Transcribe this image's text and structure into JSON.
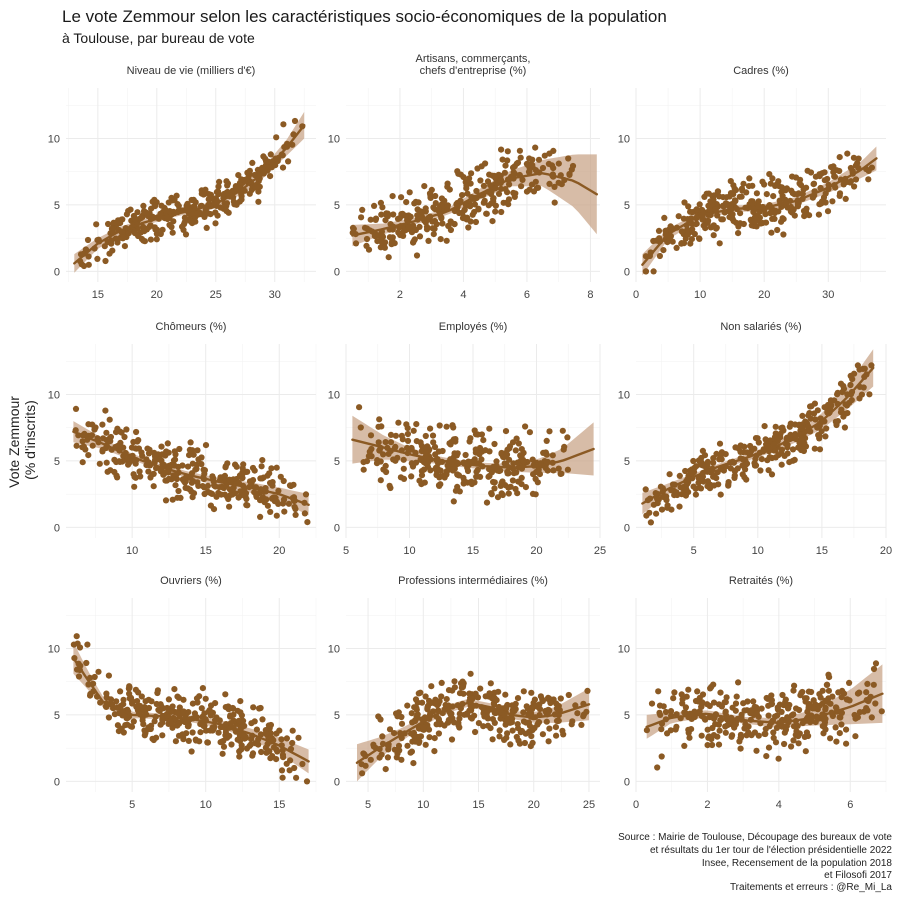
{
  "title": "Le vote Zemmour selon les caractéristiques socio-économiques de la population",
  "subtitle": "à Toulouse, par bureau de vote",
  "ylabel_lines": [
    "Vote Zemmour",
    "(% d'inscrits)"
  ],
  "caption_lines": [
    "Source : Mairie de Toulouse, Découpage des bureaux de vote",
    "et résultats du 1er tour de l'élection présidentielle 2022",
    "Insee, Recensement de la population 2018",
    "et Filosofi 2017",
    "Traitements et erreurs : @Re_Mi_La"
  ],
  "colors": {
    "points": "#8b5a24",
    "trend": "#8b5a24",
    "band": "#c9a68a",
    "grid": "#ebebeb"
  },
  "chart_data": [
    {
      "type": "scatter",
      "title_lines": [
        "Niveau de vie (milliers d'€)"
      ],
      "xlim": [
        12.3,
        33.5
      ],
      "ylim": [
        -0.8,
        13.8
      ],
      "xticks": [
        15,
        20,
        25,
        30
      ],
      "yticks": [
        0,
        5,
        10
      ],
      "trend": {
        "x": [
          13,
          15,
          17,
          19,
          21,
          23,
          25,
          27,
          29,
          31,
          32.5
        ],
        "y": [
          0.6,
          2.1,
          3.1,
          3.7,
          4.2,
          4.6,
          5.1,
          6.0,
          7.4,
          9.3,
          11.0
        ]
      },
      "band_halfwidth": [
        0.7,
        0.4,
        0.3,
        0.25,
        0.2,
        0.2,
        0.25,
        0.3,
        0.4,
        0.6,
        1.0
      ],
      "points": {
        "count": 330,
        "x_range": [
          13,
          32.5
        ],
        "scatter_sd": 1.1,
        "seed": 11
      }
    },
    {
      "type": "scatter",
      "title_lines": [
        "Artisans, commerçants,",
        "chefs d'entreprise (%)"
      ],
      "xlim": [
        0.3,
        8.3
      ],
      "ylim": [
        -0.8,
        13.8
      ],
      "xticks": [
        2,
        4,
        6,
        8
      ],
      "yticks": [
        0,
        5,
        10
      ],
      "trend": {
        "x": [
          0.5,
          1.5,
          2.5,
          3.5,
          4.5,
          5.5,
          6.5,
          7.5,
          8.2
        ],
        "y": [
          2.7,
          3.2,
          3.8,
          4.5,
          5.8,
          7.0,
          7.4,
          6.8,
          5.8
        ]
      },
      "band_halfwidth": [
        0.8,
        0.4,
        0.25,
        0.25,
        0.4,
        0.6,
        1.0,
        2.0,
        3.0
      ],
      "points": {
        "count": 320,
        "x_range": [
          0.5,
          7.5
        ],
        "scatter_sd": 1.5,
        "seed": 23
      }
    },
    {
      "type": "scatter",
      "title_lines": [
        "Cadres (%)"
      ],
      "xlim": [
        0,
        39
      ],
      "ylim": [
        -0.8,
        13.8
      ],
      "xticks": [
        0,
        10,
        20,
        30
      ],
      "yticks": [
        0,
        5,
        10
      ],
      "trend": {
        "x": [
          1,
          5,
          10,
          15,
          20,
          25,
          30,
          35,
          37.5
        ],
        "y": [
          0.5,
          2.8,
          4.2,
          4.7,
          4.8,
          5.3,
          6.3,
          7.6,
          8.5
        ]
      },
      "band_halfwidth": [
        0.8,
        0.4,
        0.3,
        0.25,
        0.25,
        0.3,
        0.4,
        0.6,
        0.9
      ],
      "points": {
        "count": 330,
        "x_range": [
          1,
          37
        ],
        "scatter_sd": 1.4,
        "seed": 37
      }
    },
    {
      "type": "scatter",
      "title_lines": [
        "Chômeurs (%)"
      ],
      "xlim": [
        5.5,
        22.5
      ],
      "ylim": [
        -0.8,
        13.8
      ],
      "xticks": [
        10,
        15,
        20
      ],
      "yticks": [
        0,
        5,
        10
      ],
      "trend": {
        "x": [
          6,
          8,
          10,
          12,
          14,
          16,
          18,
          20,
          22
        ],
        "y": [
          7.2,
          6.3,
          5.3,
          4.5,
          3.9,
          3.4,
          3.0,
          2.5,
          1.7
        ]
      },
      "band_halfwidth": [
        0.8,
        0.4,
        0.25,
        0.2,
        0.25,
        0.3,
        0.4,
        0.5,
        0.8
      ],
      "points": {
        "count": 330,
        "x_range": [
          6,
          22
        ],
        "scatter_sd": 1.5,
        "seed": 41
      }
    },
    {
      "type": "scatter",
      "title_lines": [
        "Employés (%)"
      ],
      "xlim": [
        5,
        25
      ],
      "ylim": [
        -0.8,
        13.8
      ],
      "xticks": [
        5,
        10,
        15,
        20,
        25
      ],
      "yticks": [
        0,
        5,
        10
      ],
      "trend": {
        "x": [
          5.5,
          8,
          10,
          12,
          14,
          16,
          18,
          20,
          22,
          24.5
        ],
        "y": [
          6.6,
          6.0,
          5.5,
          5.1,
          4.8,
          4.6,
          4.5,
          4.6,
          5.0,
          5.9
        ]
      },
      "band_halfwidth": [
        1.8,
        0.9,
        0.5,
        0.3,
        0.25,
        0.25,
        0.3,
        0.5,
        0.9,
        2.0
      ],
      "points": {
        "count": 320,
        "x_range": [
          6,
          23
        ],
        "scatter_sd": 1.8,
        "seed": 53
      }
    },
    {
      "type": "scatter",
      "title_lines": [
        "Non salariés (%)"
      ],
      "xlim": [
        0.5,
        20
      ],
      "ylim": [
        -0.8,
        13.8
      ],
      "xticks": [
        5,
        10,
        15,
        20
      ],
      "yticks": [
        0,
        5,
        10
      ],
      "trend": {
        "x": [
          1,
          3,
          5,
          7,
          9,
          11,
          13,
          15,
          17,
          19
        ],
        "y": [
          1.8,
          2.9,
          3.8,
          4.6,
          5.2,
          5.9,
          6.8,
          8.0,
          9.8,
          12.0
        ]
      },
      "band_halfwidth": [
        0.8,
        0.4,
        0.25,
        0.2,
        0.25,
        0.3,
        0.4,
        0.6,
        0.9,
        1.4
      ],
      "points": {
        "count": 330,
        "x_range": [
          1,
          19
        ],
        "scatter_sd": 1.2,
        "seed": 67
      }
    },
    {
      "type": "scatter",
      "title_lines": [
        "Ouvriers (%)"
      ],
      "xlim": [
        0.5,
        17.5
      ],
      "ylim": [
        -0.8,
        13.8
      ],
      "xticks": [
        5,
        10,
        15
      ],
      "yticks": [
        0,
        5,
        10
      ],
      "trend": {
        "x": [
          1,
          2,
          3,
          5,
          7,
          9,
          11,
          13,
          15,
          17
        ],
        "y": [
          9.3,
          7.6,
          6.0,
          5.0,
          4.9,
          4.7,
          4.3,
          3.6,
          2.7,
          1.5
        ]
      },
      "band_halfwidth": [
        1.2,
        0.7,
        0.4,
        0.25,
        0.2,
        0.25,
        0.3,
        0.4,
        0.6,
        0.9
      ],
      "points": {
        "count": 320,
        "x_range": [
          1,
          17
        ],
        "scatter_sd": 1.5,
        "seed": 79
      }
    },
    {
      "type": "scatter",
      "title_lines": [
        "Professions intermédiaires (%)"
      ],
      "xlim": [
        3,
        26
      ],
      "ylim": [
        -0.8,
        13.8
      ],
      "xticks": [
        5,
        10,
        15,
        20,
        25
      ],
      "yticks": [
        0,
        5,
        10
      ],
      "trend": {
        "x": [
          4,
          6,
          8,
          10,
          12,
          14,
          16,
          18,
          20,
          22,
          25
        ],
        "y": [
          1.4,
          2.5,
          3.5,
          4.5,
          5.4,
          5.9,
          5.6,
          5.0,
          4.8,
          5.0,
          5.8
        ]
      },
      "band_halfwidth": [
        1.4,
        0.8,
        0.5,
        0.35,
        0.3,
        0.3,
        0.3,
        0.3,
        0.4,
        0.6,
        1.2
      ],
      "points": {
        "count": 330,
        "x_range": [
          4,
          25
        ],
        "scatter_sd": 1.6,
        "seed": 83
      }
    },
    {
      "type": "scatter",
      "title_lines": [
        "Retraités (%)"
      ],
      "xlim": [
        0,
        7
      ],
      "ylim": [
        -0.8,
        13.8
      ],
      "xticks": [
        0,
        2,
        4,
        6
      ],
      "yticks": [
        0,
        5,
        10
      ],
      "trend": {
        "x": [
          0.3,
          1,
          2,
          3,
          4,
          5,
          6,
          6.9
        ],
        "y": [
          4.1,
          4.8,
          5.1,
          4.6,
          4.4,
          4.8,
          5.6,
          6.6
        ]
      },
      "band_halfwidth": [
        0.9,
        0.4,
        0.25,
        0.25,
        0.35,
        0.6,
        1.3,
        2.2
      ],
      "points": {
        "count": 320,
        "x_range": [
          0.3,
          6.9
        ],
        "scatter_sd": 1.7,
        "seed": 97
      }
    }
  ]
}
